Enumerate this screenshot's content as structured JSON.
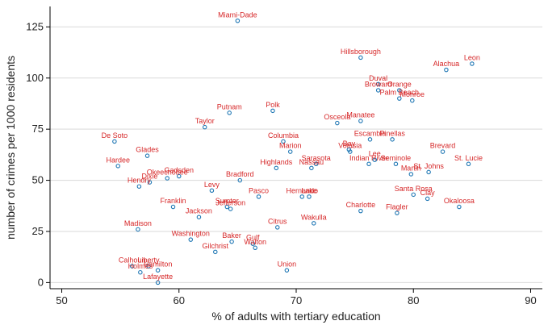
{
  "chart_data": {
    "type": "scatter",
    "xlabel": "% of adults with tertiary education",
    "ylabel": "number of crimes per 1000 residents",
    "xlim": [
      49,
      91
    ],
    "ylim": [
      -3,
      135
    ],
    "xticks": [
      50,
      60,
      70,
      80,
      90
    ],
    "yticks": [
      0,
      25,
      50,
      75,
      100,
      125
    ],
    "grid": "horizontal",
    "colors": {
      "marker": "#1f77b4",
      "label": "#d62728",
      "grid": "#d9d9d9",
      "axis": "#000000"
    },
    "points": [
      {
        "name": "Miami-Dade",
        "x": 65.0,
        "y": 128
      },
      {
        "name": "Hillsborough",
        "x": 75.5,
        "y": 110
      },
      {
        "name": "Leon",
        "x": 85.0,
        "y": 107
      },
      {
        "name": "Alachua",
        "x": 82.8,
        "y": 104
      },
      {
        "name": "Duval",
        "x": 77.0,
        "y": 97
      },
      {
        "name": "Broward",
        "x": 77.0,
        "y": 94
      },
      {
        "name": "Orange",
        "x": 78.8,
        "y": 94
      },
      {
        "name": "Palm Beach",
        "x": 78.8,
        "y": 90
      },
      {
        "name": "Monroe",
        "x": 79.9,
        "y": 89
      },
      {
        "name": "Polk",
        "x": 68.0,
        "y": 84
      },
      {
        "name": "Putnam",
        "x": 64.3,
        "y": 83
      },
      {
        "name": "Manatee",
        "x": 75.5,
        "y": 79
      },
      {
        "name": "Osceola",
        "x": 73.5,
        "y": 78
      },
      {
        "name": "Taylor",
        "x": 62.2,
        "y": 76
      },
      {
        "name": "Escambia",
        "x": 76.3,
        "y": 70
      },
      {
        "name": "Pinellas",
        "x": 78.2,
        "y": 70
      },
      {
        "name": "De Soto",
        "x": 54.5,
        "y": 69
      },
      {
        "name": "Columbia",
        "x": 68.9,
        "y": 69
      },
      {
        "name": "Marion",
        "x": 69.5,
        "y": 64
      },
      {
        "name": "Bay",
        "x": 74.5,
        "y": 65
      },
      {
        "name": "Volusia",
        "x": 74.6,
        "y": 64
      },
      {
        "name": "Brevard",
        "x": 82.5,
        "y": 64
      },
      {
        "name": "Glades",
        "x": 57.3,
        "y": 62
      },
      {
        "name": "Lee",
        "x": 76.7,
        "y": 60
      },
      {
        "name": "Indian River",
        "x": 76.2,
        "y": 58
      },
      {
        "name": "Seminole",
        "x": 78.5,
        "y": 58
      },
      {
        "name": "Sarasota",
        "x": 71.7,
        "y": 58
      },
      {
        "name": "St. Lucie",
        "x": 84.7,
        "y": 58
      },
      {
        "name": "St. Johns",
        "x": 81.3,
        "y": 54
      },
      {
        "name": "Martin",
        "x": 79.8,
        "y": 53
      },
      {
        "name": "Nassau",
        "x": 71.3,
        "y": 56
      },
      {
        "name": "Highlands",
        "x": 68.3,
        "y": 56
      },
      {
        "name": "Hardee",
        "x": 54.8,
        "y": 57
      },
      {
        "name": "Gadsden",
        "x": 60.0,
        "y": 52
      },
      {
        "name": "Okeechobee",
        "x": 59.0,
        "y": 51
      },
      {
        "name": "Dixie",
        "x": 57.5,
        "y": 49
      },
      {
        "name": "Hendry",
        "x": 56.6,
        "y": 47
      },
      {
        "name": "Bradford",
        "x": 65.2,
        "y": 50
      },
      {
        "name": "Levy",
        "x": 62.8,
        "y": 45
      },
      {
        "name": "Hernando",
        "x": 70.5,
        "y": 42
      },
      {
        "name": "Lake",
        "x": 71.1,
        "y": 42
      },
      {
        "name": "Pasco",
        "x": 66.8,
        "y": 42
      },
      {
        "name": "Santa Rosa",
        "x": 80.0,
        "y": 43
      },
      {
        "name": "Clay",
        "x": 81.2,
        "y": 41
      },
      {
        "name": "Okaloosa",
        "x": 83.9,
        "y": 37
      },
      {
        "name": "Sumter",
        "x": 64.1,
        "y": 37
      },
      {
        "name": "Jefferson",
        "x": 64.4,
        "y": 36
      },
      {
        "name": "Franklin",
        "x": 59.5,
        "y": 37
      },
      {
        "name": "Charlotte",
        "x": 75.5,
        "y": 35
      },
      {
        "name": "Flagler",
        "x": 78.6,
        "y": 34
      },
      {
        "name": "Jackson",
        "x": 61.7,
        "y": 32
      },
      {
        "name": "Wakulla",
        "x": 71.5,
        "y": 29
      },
      {
        "name": "Citrus",
        "x": 68.4,
        "y": 27
      },
      {
        "name": "Madison",
        "x": 56.5,
        "y": 26
      },
      {
        "name": "Washington",
        "x": 61.0,
        "y": 21
      },
      {
        "name": "Baker",
        "x": 64.5,
        "y": 20
      },
      {
        "name": "Gulf",
        "x": 66.3,
        "y": 19
      },
      {
        "name": "Walton",
        "x": 66.5,
        "y": 17
      },
      {
        "name": "Gilchrist",
        "x": 63.1,
        "y": 15
      },
      {
        "name": "Union",
        "x": 69.2,
        "y": 6
      },
      {
        "name": "Calhoun",
        "x": 56.0,
        "y": 8
      },
      {
        "name": "Liberty",
        "x": 57.4,
        "y": 8
      },
      {
        "name": "Holmes",
        "x": 56.7,
        "y": 5
      },
      {
        "name": "Hamilton",
        "x": 58.2,
        "y": 6
      },
      {
        "name": "Lafayette",
        "x": 58.2,
        "y": 0
      }
    ]
  }
}
